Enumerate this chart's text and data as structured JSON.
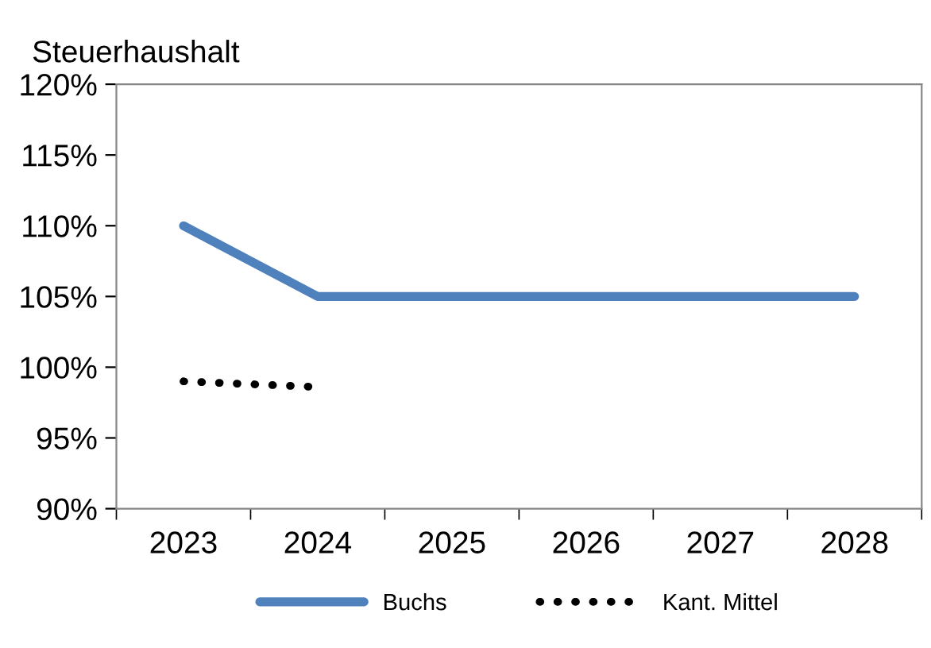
{
  "chart_data": {
    "type": "line",
    "title": "Steuerhaushalt",
    "categories": [
      "2023",
      "2024",
      "2025",
      "2026",
      "2027",
      "2028"
    ],
    "series": [
      {
        "name": "Buchs",
        "color": "#4f81bd",
        "values": [
          110,
          105,
          105,
          105,
          105,
          105
        ],
        "line_style": "solid"
      },
      {
        "name": "Kant. Mittel",
        "color": "#000000",
        "values": [
          99.0,
          98.6,
          null,
          null,
          null,
          null
        ],
        "line_style": "dotted"
      }
    ],
    "ylim": [
      90,
      120
    ],
    "yticks": [
      {
        "value": 90,
        "label": "90%"
      },
      {
        "value": 95,
        "label": "95%"
      },
      {
        "value": 100,
        "label": "100%"
      },
      {
        "value": 105,
        "label": "105%"
      },
      {
        "value": 110,
        "label": "110%"
      },
      {
        "value": 115,
        "label": "115%"
      },
      {
        "value": 120,
        "label": "120%"
      }
    ],
    "grid": false,
    "legend": "bottom",
    "marker": "none"
  }
}
